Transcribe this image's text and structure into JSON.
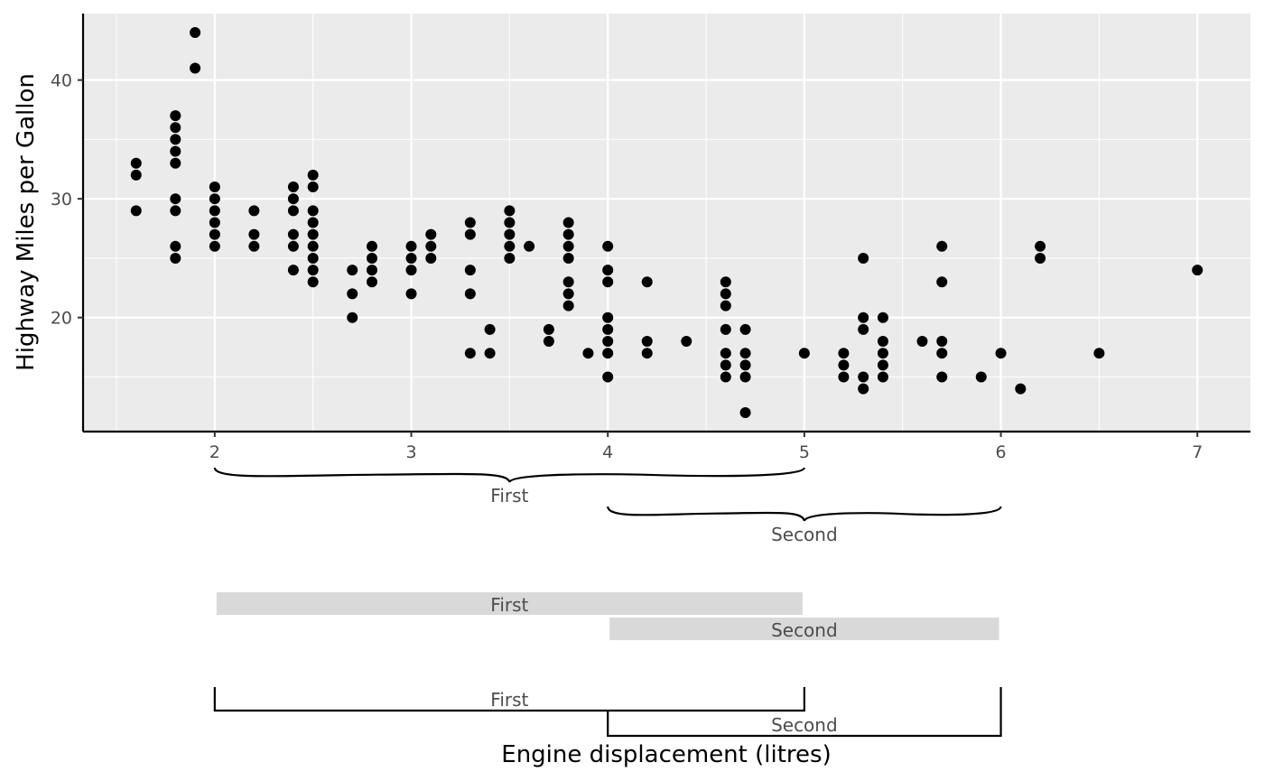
{
  "chart_data": {
    "type": "scatter",
    "title": "",
    "xlabel": "Engine displacement (litres)",
    "ylabel": "Highway Miles per Gallon",
    "xlim": [
      1.33,
      7.27
    ],
    "ylim": [
      10.4,
      45.6
    ],
    "x_ticks": [
      2,
      3,
      4,
      5,
      6,
      7
    ],
    "y_ticks": [
      20,
      30,
      40
    ],
    "grid": true,
    "point_color": "#000000",
    "panel_color": "#ebebeb",
    "grid_color": "#ffffff",
    "points": [
      [
        1.6,
        33
      ],
      [
        1.6,
        32
      ],
      [
        1.6,
        29
      ],
      [
        1.8,
        37
      ],
      [
        1.8,
        36
      ],
      [
        1.8,
        35
      ],
      [
        1.8,
        34
      ],
      [
        1.8,
        33
      ],
      [
        1.8,
        30
      ],
      [
        1.8,
        29
      ],
      [
        1.8,
        26
      ],
      [
        1.8,
        25
      ],
      [
        1.9,
        44
      ],
      [
        1.9,
        41
      ],
      [
        2.0,
        31
      ],
      [
        2.0,
        30
      ],
      [
        2.0,
        29
      ],
      [
        2.0,
        28
      ],
      [
        2.0,
        27
      ],
      [
        2.0,
        26
      ],
      [
        2.2,
        29
      ],
      [
        2.2,
        27
      ],
      [
        2.2,
        26
      ],
      [
        2.4,
        31
      ],
      [
        2.4,
        30
      ],
      [
        2.4,
        29
      ],
      [
        2.4,
        27
      ],
      [
        2.4,
        26
      ],
      [
        2.4,
        24
      ],
      [
        2.5,
        32
      ],
      [
        2.5,
        31
      ],
      [
        2.5,
        29
      ],
      [
        2.5,
        28
      ],
      [
        2.5,
        27
      ],
      [
        2.5,
        26
      ],
      [
        2.5,
        25
      ],
      [
        2.5,
        24
      ],
      [
        2.5,
        23
      ],
      [
        2.7,
        24
      ],
      [
        2.7,
        22
      ],
      [
        2.7,
        20
      ],
      [
        2.8,
        26
      ],
      [
        2.8,
        25
      ],
      [
        2.8,
        24
      ],
      [
        2.8,
        23
      ],
      [
        3.0,
        26
      ],
      [
        3.0,
        25
      ],
      [
        3.0,
        24
      ],
      [
        3.0,
        22
      ],
      [
        3.1,
        27
      ],
      [
        3.1,
        26
      ],
      [
        3.1,
        25
      ],
      [
        3.3,
        28
      ],
      [
        3.3,
        27
      ],
      [
        3.3,
        24
      ],
      [
        3.3,
        22
      ],
      [
        3.3,
        17
      ],
      [
        3.4,
        19
      ],
      [
        3.4,
        17
      ],
      [
        3.5,
        29
      ],
      [
        3.5,
        28
      ],
      [
        3.5,
        27
      ],
      [
        3.5,
        26
      ],
      [
        3.5,
        25
      ],
      [
        3.6,
        26
      ],
      [
        3.7,
        19
      ],
      [
        3.7,
        18
      ],
      [
        3.8,
        28
      ],
      [
        3.8,
        27
      ],
      [
        3.8,
        26
      ],
      [
        3.8,
        25
      ],
      [
        3.8,
        23
      ],
      [
        3.8,
        22
      ],
      [
        3.8,
        21
      ],
      [
        3.9,
        17
      ],
      [
        4.0,
        26
      ],
      [
        4.0,
        24
      ],
      [
        4.0,
        23
      ],
      [
        4.0,
        20
      ],
      [
        4.0,
        19
      ],
      [
        4.0,
        18
      ],
      [
        4.0,
        17
      ],
      [
        4.0,
        15
      ],
      [
        4.2,
        23
      ],
      [
        4.2,
        18
      ],
      [
        4.2,
        17
      ],
      [
        4.4,
        18
      ],
      [
        4.6,
        23
      ],
      [
        4.6,
        22
      ],
      [
        4.6,
        21
      ],
      [
        4.6,
        19
      ],
      [
        4.6,
        17
      ],
      [
        4.6,
        16
      ],
      [
        4.6,
        15
      ],
      [
        4.7,
        19
      ],
      [
        4.7,
        17
      ],
      [
        4.7,
        16
      ],
      [
        4.7,
        15
      ],
      [
        4.7,
        12
      ],
      [
        5.0,
        17
      ],
      [
        5.2,
        17
      ],
      [
        5.2,
        16
      ],
      [
        5.2,
        15
      ],
      [
        5.3,
        25
      ],
      [
        5.3,
        20
      ],
      [
        5.3,
        19
      ],
      [
        5.3,
        15
      ],
      [
        5.3,
        14
      ],
      [
        5.4,
        20
      ],
      [
        5.4,
        18
      ],
      [
        5.4,
        17
      ],
      [
        5.4,
        16
      ],
      [
        5.4,
        15
      ],
      [
        5.6,
        18
      ],
      [
        5.7,
        26
      ],
      [
        5.7,
        23
      ],
      [
        5.7,
        18
      ],
      [
        5.7,
        17
      ],
      [
        5.7,
        15
      ],
      [
        5.9,
        15
      ],
      [
        6.0,
        17
      ],
      [
        6.1,
        14
      ],
      [
        6.2,
        26
      ],
      [
        6.2,
        25
      ],
      [
        6.5,
        17
      ],
      [
        7.0,
        24
      ]
    ],
    "annotations": {
      "ranges": [
        {
          "label": "First",
          "start": 2,
          "end": 5
        },
        {
          "label": "Second",
          "start": 4,
          "end": 6
        }
      ],
      "brace_color": "#000000",
      "box_color": "#d9d9d9",
      "bracket_color": "#000000"
    }
  }
}
